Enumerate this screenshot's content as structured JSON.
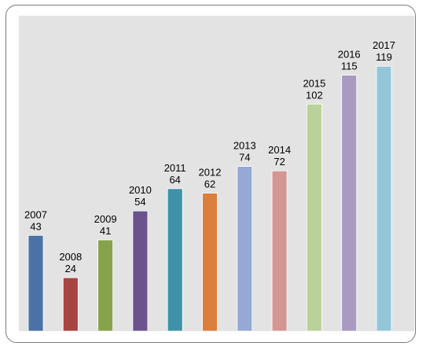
{
  "chart_data": {
    "type": "bar",
    "title": "",
    "xlabel": "",
    "ylabel": "",
    "ylim": [
      0,
      130
    ],
    "grid": false,
    "legend": "none",
    "categories": [
      "2007",
      "2008",
      "2009",
      "2010",
      "2011",
      "2012",
      "2013",
      "2014",
      "2015",
      "2016",
      "2017"
    ],
    "values": [
      43,
      24,
      41,
      54,
      64,
      62,
      74,
      72,
      102,
      115,
      119
    ],
    "colors": [
      "#4a72a6",
      "#a84442",
      "#86a34b",
      "#6b548d",
      "#3f91a8",
      "#db7f3c",
      "#95a9d4",
      "#d49693",
      "#b9d19a",
      "#a99ac1",
      "#93c6d8"
    ],
    "plot_background": "#e3e3e3"
  }
}
